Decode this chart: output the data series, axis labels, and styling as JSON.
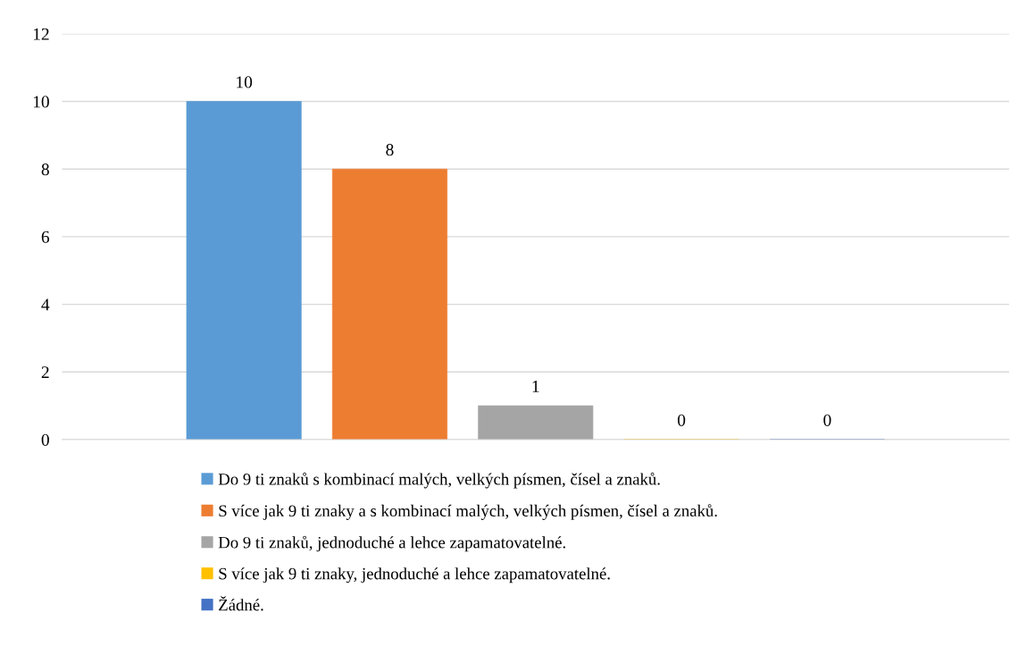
{
  "chart_data": {
    "type": "bar",
    "categories": [
      null
    ],
    "series": [
      {
        "name": "Do 9 ti znaků s kombinací malých, velkých písmen, čísel a znaků.",
        "color": "#5b9bd5",
        "values": [
          10
        ]
      },
      {
        "name": "S více jak 9 ti znaky a s kombinací malých, velkých písmen, čísel a znaků.",
        "color": "#ed7d31",
        "values": [
          8
        ]
      },
      {
        "name": "Do 9 ti znaků, jednoduché a lehce zapamatovatelné.",
        "color": "#a5a5a5",
        "values": [
          1
        ]
      },
      {
        "name": "S více jak 9 ti znaky, jednoduché a lehce zapamatovatelné.",
        "color": "#ffc000",
        "values": [
          0
        ]
      },
      {
        "name": "Žádné.",
        "color": "#4472c4",
        "values": [
          0
        ]
      }
    ],
    "ylim": [
      0,
      12
    ],
    "yticks": [
      0,
      2,
      4,
      6,
      8,
      10,
      12
    ],
    "grid": "y",
    "legend": "bottom",
    "data_labels": true
  }
}
